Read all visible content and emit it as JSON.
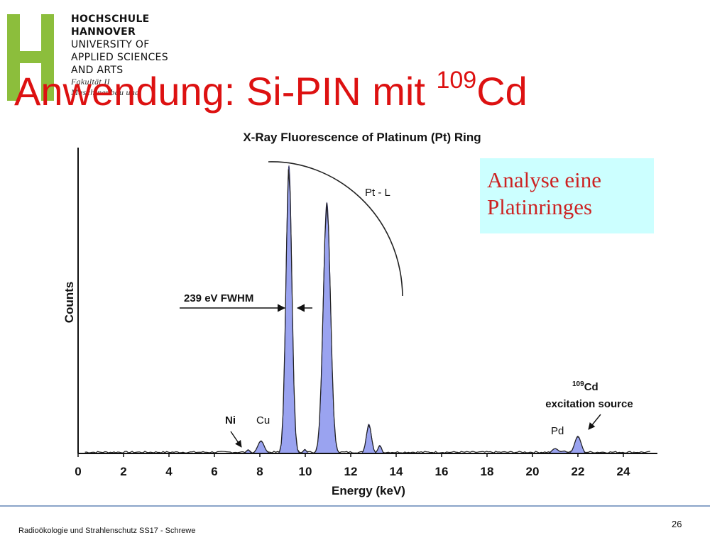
{
  "header": {
    "logo_letter": "H",
    "logo_color": "#8cbe3c",
    "university_lines": [
      "HOCHSCHULE",
      "HANNOVER",
      "UNIVERSITY OF",
      "APPLIED SCIENCES",
      "AND ARTS"
    ],
    "faculty_lines": [
      "Fakultät II",
      "Maschinenbau und"
    ]
  },
  "slide": {
    "title_main": "Anwendung: Si-PIN mit ",
    "title_sup": "109",
    "title_tail": "Cd",
    "title_color": "#dd1111"
  },
  "note_box": {
    "line1": "Analyse eine",
    "line2": "Platinringes",
    "background": "#ccffff",
    "text_color": "#cc2222"
  },
  "chart_data": {
    "type": "area",
    "title": "X-Ray Fluorescence of Platinum (Pt) Ring",
    "xlabel": "Energy (keV)",
    "ylabel": "Counts",
    "xlim": [
      0,
      25.5
    ],
    "ylim": [
      0,
      100
    ],
    "x_ticks": [
      0,
      2,
      4,
      6,
      8,
      10,
      12,
      14,
      16,
      18,
      20,
      22,
      24
    ],
    "y_ticks": [],
    "grid": false,
    "fill_color": "#9aa3f0",
    "peaks": [
      {
        "center": 7.48,
        "height": 1.2,
        "width": 0.07
      },
      {
        "center": 8.05,
        "height": 4.1,
        "width": 0.14
      },
      {
        "center": 9.28,
        "height": 94,
        "width": 0.13
      },
      {
        "center": 9.98,
        "height": 1.3,
        "width": 0.07
      },
      {
        "center": 10.95,
        "height": 82,
        "width": 0.16
      },
      {
        "center": 12.8,
        "height": 9.5,
        "width": 0.11
      },
      {
        "center": 13.28,
        "height": 2.6,
        "width": 0.08
      },
      {
        "center": 21.0,
        "height": 1.6,
        "width": 0.14
      },
      {
        "center": 21.4,
        "height": 0.8,
        "width": 0.1
      },
      {
        "center": 22.0,
        "height": 5.6,
        "width": 0.14
      }
    ],
    "annotations": {
      "ptl": "Pt - L",
      "fwhm": "239 eV FWHM",
      "ni": "Ni",
      "cu": "Cu",
      "pd": "Pd",
      "cd_sup": "109",
      "cd_el": "Cd",
      "cd_source": "excitation source"
    }
  },
  "footer": {
    "text": "Radioökologie und Strahlenschutz SS17 - Schrewe",
    "page": "26"
  }
}
